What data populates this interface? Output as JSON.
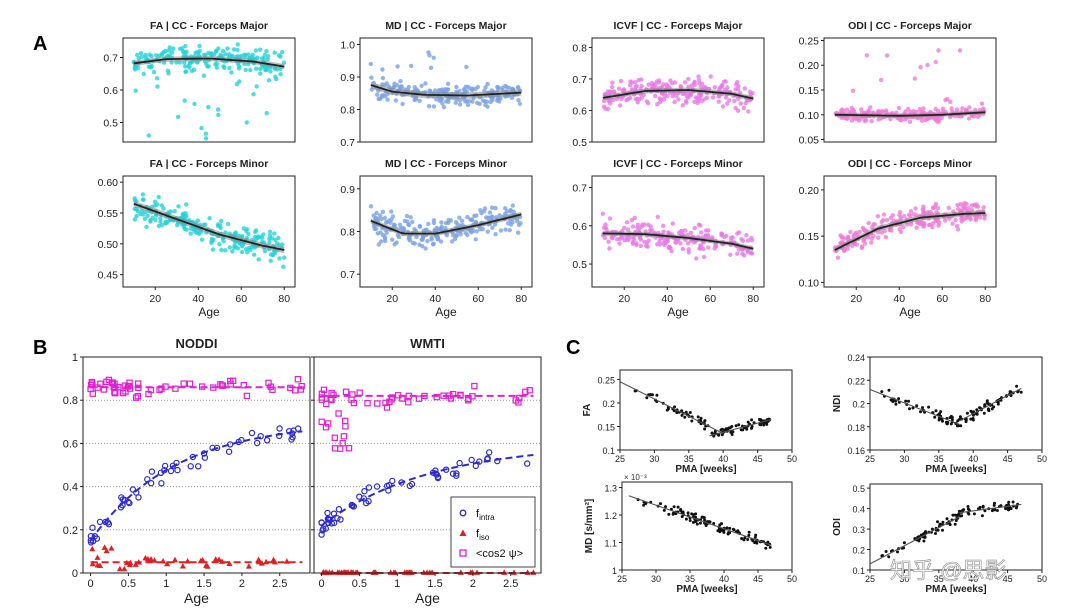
{
  "panel_labels": {
    "a": "A",
    "b": "B",
    "c": "C"
  },
  "watermark": "知乎 @思影",
  "chart_data": [
    {
      "id": "fa_major",
      "type": "scatter",
      "title": "FA | CC - Forceps Major",
      "xlabel": "",
      "ylabel": "",
      "xlim": [
        5,
        85
      ],
      "ylim": [
        0.44,
        0.76
      ],
      "yticks": [
        0.5,
        0.6,
        0.7
      ],
      "ytick_labels": [
        "0.5",
        "0.6",
        "0.7"
      ],
      "xticks": [],
      "color": "#22d3db",
      "n_points": 230,
      "fit": [
        [
          10,
          0.682
        ],
        [
          25,
          0.695
        ],
        [
          45,
          0.697
        ],
        [
          65,
          0.688
        ],
        [
          80,
          0.672
        ]
      ],
      "band": 0.008,
      "spread": 0.035,
      "outlier_low": 0.45
    },
    {
      "id": "md_major",
      "type": "scatter",
      "title": "MD | CC - Forceps Major",
      "xlabel": "",
      "ylabel": "",
      "xlim": [
        5,
        85
      ],
      "ylim": [
        0.7,
        1.02
      ],
      "yticks": [
        0.7,
        0.8,
        0.9,
        1.0
      ],
      "ytick_labels": [
        "0.7",
        "0.8",
        "0.9",
        "1.0"
      ],
      "xticks": [],
      "color": "#7aa3e5",
      "n_points": 230,
      "fit": [
        [
          10,
          0.875
        ],
        [
          20,
          0.855
        ],
        [
          35,
          0.845
        ],
        [
          55,
          0.843
        ],
        [
          80,
          0.852
        ]
      ],
      "band": 0.01,
      "spread": 0.03,
      "outlier_high": 1.0
    },
    {
      "id": "icvf_major",
      "type": "scatter",
      "title": "ICVF | CC - Forceps Major",
      "xlabel": "",
      "ylabel": "",
      "xlim": [
        5,
        85
      ],
      "ylim": [
        0.5,
        0.83
      ],
      "yticks": [
        0.5,
        0.6,
        0.7,
        0.8
      ],
      "ytick_labels": [
        "0.5",
        "0.6",
        "0.7",
        "0.8"
      ],
      "xticks": [],
      "color": "#e879e8",
      "n_points": 230,
      "fit": [
        [
          10,
          0.64
        ],
        [
          30,
          0.662
        ],
        [
          50,
          0.665
        ],
        [
          70,
          0.653
        ],
        [
          80,
          0.638
        ]
      ],
      "band": 0.008,
      "spread": 0.04
    },
    {
      "id": "odi_major",
      "type": "scatter",
      "title": "ODI | CC - Forceps Major",
      "xlabel": "",
      "ylabel": "",
      "xlim": [
        5,
        85
      ],
      "ylim": [
        0.045,
        0.255
      ],
      "yticks": [
        0.05,
        0.1,
        0.15,
        0.2,
        0.25
      ],
      "ytick_labels": [
        "0.05",
        "0.10",
        "0.15",
        "0.20",
        "0.25"
      ],
      "xticks": [],
      "color": "#f07ad8",
      "n_points": 230,
      "fit": [
        [
          10,
          0.1
        ],
        [
          40,
          0.098
        ],
        [
          60,
          0.1
        ],
        [
          80,
          0.105
        ]
      ],
      "band": 0.004,
      "spread": 0.012,
      "outlier_high": 0.23
    },
    {
      "id": "fa_minor",
      "type": "scatter",
      "title": "FA | CC - Forceps Minor",
      "xlabel": "Age",
      "ylabel": "",
      "xlim": [
        5,
        85
      ],
      "ylim": [
        0.43,
        0.61
      ],
      "yticks": [
        0.45,
        0.5,
        0.55,
        0.6
      ],
      "ytick_labels": [
        "0.45",
        "0.50",
        "0.55",
        "0.60"
      ],
      "xticks": [
        20,
        40,
        60,
        80
      ],
      "xtick_labels": [
        "20",
        "40",
        "60",
        "80"
      ],
      "color": "#22d3db",
      "n_points": 230,
      "fit": [
        [
          10,
          0.565
        ],
        [
          30,
          0.54
        ],
        [
          50,
          0.515
        ],
        [
          70,
          0.497
        ],
        [
          80,
          0.49
        ]
      ],
      "band": 0.005,
      "spread": 0.025
    },
    {
      "id": "md_minor",
      "type": "scatter",
      "title": "MD | CC - Forceps Minor",
      "xlabel": "Age",
      "ylabel": "",
      "xlim": [
        5,
        85
      ],
      "ylim": [
        0.67,
        0.93
      ],
      "yticks": [
        0.7,
        0.8,
        0.9
      ],
      "ytick_labels": [
        "0.7",
        "0.8",
        "0.9"
      ],
      "xticks": [
        20,
        40,
        60,
        80
      ],
      "xtick_labels": [
        "20",
        "40",
        "60",
        "80"
      ],
      "color": "#7aa3e5",
      "n_points": 230,
      "fit": [
        [
          10,
          0.825
        ],
        [
          25,
          0.795
        ],
        [
          40,
          0.795
        ],
        [
          60,
          0.815
        ],
        [
          80,
          0.84
        ]
      ],
      "band": 0.006,
      "spread": 0.035
    },
    {
      "id": "icvf_minor",
      "type": "scatter",
      "title": "ICVF | CC - Forceps Minor",
      "xlabel": "Age",
      "ylabel": "",
      "xlim": [
        5,
        85
      ],
      "ylim": [
        0.44,
        0.73
      ],
      "yticks": [
        0.5,
        0.6,
        0.7
      ],
      "ytick_labels": [
        "0.5",
        "0.6",
        "0.7"
      ],
      "xticks": [
        20,
        40,
        60,
        80
      ],
      "xtick_labels": [
        "20",
        "40",
        "60",
        "80"
      ],
      "color": "#e879e8",
      "n_points": 230,
      "fit": [
        [
          10,
          0.58
        ],
        [
          30,
          0.578
        ],
        [
          50,
          0.568
        ],
        [
          70,
          0.553
        ],
        [
          80,
          0.54
        ]
      ],
      "band": 0.006,
      "spread": 0.035
    },
    {
      "id": "odi_minor",
      "type": "scatter",
      "title": "ODI | CC - Forceps Minor",
      "xlabel": "Age",
      "ylabel": "",
      "xlim": [
        5,
        85
      ],
      "ylim": [
        0.095,
        0.215
      ],
      "yticks": [
        0.1,
        0.15,
        0.2
      ],
      "ytick_labels": [
        "0.10",
        "0.15",
        "0.20"
      ],
      "xticks": [
        20,
        40,
        60,
        80
      ],
      "xtick_labels": [
        "20",
        "40",
        "60",
        "80"
      ],
      "color": "#f07ad8",
      "n_points": 230,
      "fit": [
        [
          10,
          0.135
        ],
        [
          30,
          0.158
        ],
        [
          50,
          0.17
        ],
        [
          70,
          0.174
        ],
        [
          80,
          0.175
        ]
      ],
      "band": 0.003,
      "spread": 0.012
    },
    {
      "id": "noddi",
      "type": "scatter",
      "title": "NODDI",
      "xlabel": "Age",
      "xlim": [
        -0.1,
        2.9
      ],
      "ylim": [
        0,
        1
      ],
      "yticks": [
        0,
        0.2,
        0.4,
        0.6,
        0.8,
        1.0
      ],
      "ytick_labels": [
        "0",
        "0.2",
        "0.4",
        "0.6",
        "0.8",
        "1"
      ],
      "xticks": [
        0,
        0.5,
        1,
        1.5,
        2,
        2.5
      ],
      "xtick_labels": [
        "0",
        "0.5",
        "1",
        "1.5",
        "2",
        "2.5"
      ],
      "series": [
        {
          "name": "f_intra",
          "marker": "circle",
          "color": "#2b2bd0",
          "fit": {
            "a": 0.15,
            "b": 0.55,
            "k": 0.9
          }
        },
        {
          "name": "f_iso",
          "marker": "triangle",
          "color": "#e02020",
          "fit": {
            "c": 0.05
          }
        },
        {
          "name": "<cos^2 psi>",
          "marker": "square",
          "color": "#e020d0",
          "fit": {
            "c": 0.86
          }
        }
      ]
    },
    {
      "id": "wmti",
      "type": "scatter",
      "title": "WMTI",
      "xlabel": "Age",
      "xlim": [
        -0.1,
        2.9
      ],
      "ylim": [
        0,
        1
      ],
      "yticks": [
        0,
        0.2,
        0.4,
        0.6,
        0.8,
        1.0
      ],
      "ytick_labels": [
        "",
        "",
        "",
        "",
        "",
        ""
      ],
      "xticks": [
        0,
        0.5,
        1,
        1.5,
        2,
        2.5
      ],
      "xtick_labels": [
        "0",
        "0.5",
        "1",
        "1.5",
        "2",
        "2.5"
      ],
      "series": [
        {
          "name": "f_intra",
          "marker": "circle",
          "color": "#2b2bd0",
          "fit": {
            "a": 0.22,
            "b": 0.38,
            "k": 0.7
          }
        },
        {
          "name": "f_iso",
          "marker": "triangle",
          "color": "#e02020",
          "fit": {
            "c": 0.0
          }
        },
        {
          "name": "<cos^2 psi>",
          "marker": "square",
          "color": "#e020d0",
          "fit": {
            "c": 0.82
          }
        }
      ],
      "legend": {
        "position": "bottom-right",
        "entries": [
          "f",
          "f",
          "<cos"
        ],
        "subscripts": [
          "intra",
          "iso",
          ""
        ],
        "suffix": [
          "",
          "",
          "2 ψ>"
        ]
      }
    },
    {
      "id": "c_fa",
      "type": "scatter",
      "title": "",
      "xlabel": "PMA [weeks]",
      "ylabel": "FA",
      "xlim": [
        25,
        50
      ],
      "ylim": [
        0.1,
        0.27
      ],
      "yticks": [
        0.1,
        0.15,
        0.2,
        0.25
      ],
      "ytick_labels": [
        "0.1",
        "0.15",
        "0.2",
        "0.25"
      ],
      "xticks": [
        25,
        30,
        35,
        40,
        45,
        50
      ],
      "xtick_labels": [
        "25",
        "30",
        "35",
        "40",
        "45",
        "50"
      ],
      "color": "#111111",
      "n_points": 110,
      "fits": [
        [
          [
            25,
            0.245
          ],
          [
            40,
            0.135
          ]
        ],
        [
          [
            38,
            0.13
          ],
          [
            47,
            0.165
          ]
        ]
      ]
    },
    {
      "id": "c_ndi",
      "type": "scatter",
      "title": "",
      "xlabel": "PMA [weeks]",
      "ylabel": "NDI",
      "xlim": [
        25,
        50
      ],
      "ylim": [
        0.16,
        0.24
      ],
      "yticks": [
        0.16,
        0.18,
        0.2,
        0.22,
        0.24
      ],
      "ytick_labels": [
        "0.16",
        "0.18",
        "0.2",
        "0.22",
        "0.24"
      ],
      "xticks": [
        25,
        30,
        35,
        40,
        45,
        50
      ],
      "xtick_labels": [
        "25",
        "30",
        "35",
        "40",
        "45",
        "50"
      ],
      "color": "#111111",
      "n_points": 110,
      "fits": [
        [
          [
            25,
            0.212
          ],
          [
            38,
            0.182
          ]
        ],
        [
          [
            38,
            0.185
          ],
          [
            47,
            0.213
          ]
        ]
      ]
    },
    {
      "id": "c_md",
      "type": "scatter",
      "title": "",
      "xlabel": "PMA [weeks]",
      "ylabel": "MD [s/mm²]",
      "exponent": "× 10⁻³",
      "xlim": [
        25,
        50
      ],
      "ylim": [
        1.0,
        1.32
      ],
      "yticks": [
        1.0,
        1.1,
        1.2,
        1.3
      ],
      "ytick_labels": [
        "1",
        "1.1",
        "1.2",
        "1.3"
      ],
      "xticks": [
        25,
        30,
        35,
        40,
        45,
        50
      ],
      "xtick_labels": [
        "25",
        "30",
        "35",
        "40",
        "45",
        "50"
      ],
      "color": "#111111",
      "n_points": 110,
      "fits": [
        [
          [
            26,
            1.27
          ],
          [
            47,
            1.09
          ]
        ]
      ]
    },
    {
      "id": "c_odi",
      "type": "scatter",
      "title": "",
      "xlabel": "PMA [weeks]",
      "ylabel": "ODI",
      "xlim": [
        25,
        50
      ],
      "ylim": [
        0.1,
        0.52
      ],
      "yticks": [
        0.1,
        0.2,
        0.3,
        0.4,
        0.5
      ],
      "ytick_labels": [
        "0.1",
        "0.2",
        "0.3",
        "0.4",
        "0.5"
      ],
      "xticks": [
        25,
        30,
        35,
        40,
        45,
        50
      ],
      "xtick_labels": [
        "25",
        "30",
        "35",
        "40",
        "45",
        "50"
      ],
      "color": "#111111",
      "n_points": 110,
      "fits": [
        [
          [
            25,
            0.13
          ],
          [
            38,
            0.36
          ]
        ],
        [
          [
            38,
            0.38
          ],
          [
            47,
            0.42
          ]
        ]
      ]
    }
  ]
}
